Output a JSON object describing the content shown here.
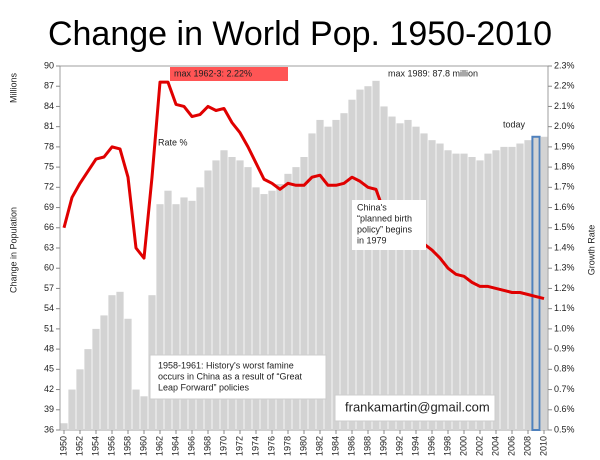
{
  "chart_data": {
    "type": "combo",
    "title": "Change in World Pop. 1950-2010",
    "y_label": "Change in Population",
    "y_unit_label": "Millions",
    "y2_label": "Growth Rate",
    "x": [
      1950,
      1951,
      1952,
      1953,
      1954,
      1955,
      1956,
      1957,
      1958,
      1959,
      1960,
      1961,
      1962,
      1963,
      1964,
      1965,
      1966,
      1967,
      1968,
      1969,
      1970,
      1971,
      1972,
      1973,
      1974,
      1975,
      1976,
      1977,
      1978,
      1979,
      1980,
      1981,
      1982,
      1983,
      1984,
      1985,
      1986,
      1987,
      1988,
      1989,
      1990,
      1991,
      1992,
      1993,
      1994,
      1995,
      1996,
      1997,
      1998,
      1999,
      2000,
      2001,
      2002,
      2003,
      2004,
      2005,
      2006,
      2007,
      2008,
      2009,
      2010
    ],
    "xlim": [
      1949.5,
      2010.5
    ],
    "xticks": [
      1950,
      1952,
      1954,
      1956,
      1958,
      1960,
      1962,
      1964,
      1966,
      1968,
      1970,
      1972,
      1974,
      1976,
      1978,
      1980,
      1982,
      1984,
      1986,
      1988,
      1990,
      1992,
      1994,
      1996,
      1998,
      2000,
      2002,
      2004,
      2006,
      2008,
      2010
    ],
    "ylim": [
      36,
      90
    ],
    "yticks": [
      36,
      39,
      42,
      45,
      48,
      51,
      54,
      57,
      60,
      63,
      66,
      69,
      72,
      75,
      78,
      81,
      84,
      87,
      90
    ],
    "y2lim": [
      0.5,
      2.3
    ],
    "y2ticks": [
      {
        "value": 0.5,
        "label": "0.5%"
      },
      {
        "value": 0.6,
        "label": "0.6%"
      },
      {
        "value": 0.7,
        "label": "0.7%"
      },
      {
        "value": 0.8,
        "label": "0.8%"
      },
      {
        "value": 0.9,
        "label": "0.9%"
      },
      {
        "value": 1.0,
        "label": "1.0%"
      },
      {
        "value": 1.1,
        "label": "1.1%"
      },
      {
        "value": 1.2,
        "label": "1.2%"
      },
      {
        "value": 1.3,
        "label": "1.3%"
      },
      {
        "value": 1.4,
        "label": "1.4%"
      },
      {
        "value": 1.5,
        "label": "1.5%"
      },
      {
        "value": 1.6,
        "label": "1.6%"
      },
      {
        "value": 1.7,
        "label": "1.7%"
      },
      {
        "value": 1.8,
        "label": "1.8%"
      },
      {
        "value": 1.9,
        "label": "1.9%"
      },
      {
        "value": 2.0,
        "label": "2.0%"
      },
      {
        "value": 2.1,
        "label": "2.1%"
      },
      {
        "value": 2.2,
        "label": "2.2%"
      },
      {
        "value": 2.3,
        "label": "2.3%"
      }
    ],
    "series": [
      {
        "type": "bar",
        "color": "#d3d3d3",
        "highlight": 2009,
        "highlight_color": "#4f81bd",
        "values": [
          37,
          42,
          45,
          48,
          51,
          53,
          56,
          56.5,
          52.5,
          42,
          41,
          56,
          69.5,
          71.5,
          69.5,
          70.5,
          70,
          72,
          74.5,
          76,
          77.5,
          76.5,
          76,
          75,
          72,
          71,
          71.5,
          72.5,
          74,
          75,
          76.5,
          80,
          82,
          81,
          82,
          83,
          85,
          86.5,
          87,
          87.8,
          84,
          82.5,
          81.5,
          82,
          81,
          80,
          79,
          78.5,
          77.5,
          77,
          77,
          76.5,
          76,
          77,
          77.5,
          78,
          78,
          78.5,
          79,
          79.5,
          79.5
        ]
      },
      {
        "type": "line",
        "axis": "y2",
        "color": "#e00000",
        "values": [
          1.5,
          1.65,
          1.72,
          1.78,
          1.84,
          1.85,
          1.9,
          1.89,
          1.75,
          1.4,
          1.35,
          1.75,
          2.22,
          2.22,
          2.11,
          2.1,
          2.05,
          2.06,
          2.1,
          2.08,
          2.09,
          2.02,
          1.97,
          1.9,
          1.82,
          1.74,
          1.72,
          1.69,
          1.72,
          1.71,
          1.71,
          1.75,
          1.76,
          1.71,
          1.71,
          1.72,
          1.75,
          1.73,
          1.7,
          1.69,
          1.58,
          1.55,
          1.5,
          1.46,
          1.45,
          1.42,
          1.39,
          1.35,
          1.3,
          1.27,
          1.26,
          1.23,
          1.21,
          1.21,
          1.2,
          1.19,
          1.18,
          1.18,
          1.17,
          1.16,
          1.15
        ]
      }
    ],
    "annotations": [
      {
        "lines": [
          "max 1962-3:  2.22%"
        ]
      },
      {
        "lines": [
          "max 1989:  87.8 million"
        ]
      },
      {
        "lines": [
          "today"
        ]
      },
      {
        "lines": [
          "Rate %"
        ]
      },
      {
        "lines": [
          "China's",
          "“planned birth",
          "policy” begins",
          "in 1979"
        ]
      },
      {
        "lines": [
          "1958-1961: History's worst famine",
          "occurs in China as a result of “Great",
          "Leap Forward” policies"
        ]
      },
      {
        "lines": [
          "frankamartin@gmail.com"
        ]
      }
    ]
  }
}
